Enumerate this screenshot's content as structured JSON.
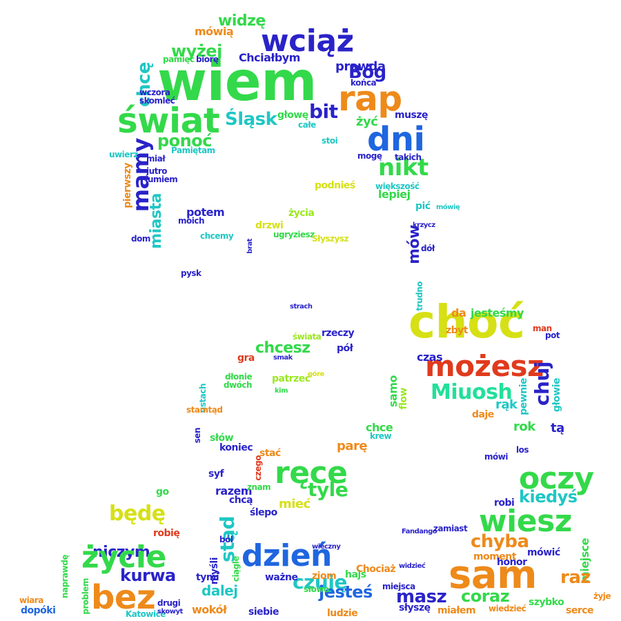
{
  "palette": {
    "green": "#33d94a",
    "lime": "#9be81f",
    "yellow": "#d6e015",
    "blue": "#1f66e0",
    "navy": "#2a23c9",
    "teal": "#1fc7c4",
    "mint": "#22e09a",
    "orange": "#ee8a1a",
    "red": "#e03a1d",
    "purple": "#3b1fd0"
  },
  "words": [
    "wiem",
    "świat",
    "wciąż",
    "rap",
    "dni",
    "chcę",
    "mamy",
    "nikt",
    "Bóg",
    "bit",
    "Śląsk",
    "widzę",
    "wyżej",
    "ponoć",
    "miasta",
    "mówią",
    "Chciałbym",
    "prawda",
    "końca",
    "żyć",
    "muszę",
    "głowę",
    "całe",
    "stoi",
    "mogę",
    "takich",
    "podnieś",
    "większość",
    "lepiej",
    "pić",
    "mów",
    "potem",
    "moich",
    "życia",
    "drzwi",
    "chcemy",
    "dom",
    "ugryziesz",
    "Słyszysz",
    "brat",
    "pysk",
    "choć",
    "możesz",
    "chuj",
    "Miuosh",
    "rąk",
    "daje",
    "pewnie",
    "głowie",
    "rok",
    "tą",
    "da",
    "jesteśmy",
    "zbyt",
    "man",
    "pot",
    "chcesz",
    "rzeczy",
    "pół",
    "świata",
    "gra",
    "patrzeć",
    "kim",
    "czas",
    "samo",
    "flow",
    "ręce",
    "tyle",
    "mieć",
    "parę",
    "chce",
    "krew",
    "koniec",
    "stać",
    "syf",
    "razem",
    "chcą",
    "czego",
    "znam",
    "stąd",
    "ślepo",
    "oczy",
    "kiedyś",
    "wiesz",
    "chyba",
    "robi",
    "mówi",
    "los",
    "moment",
    "mówić",
    "miejsce",
    "będę",
    "niczym",
    "życie",
    "kurwa",
    "bez",
    "go",
    "robię",
    "dzień",
    "czuję",
    "dalej",
    "jesteś",
    "masz",
    "coraz",
    "sam",
    "raz",
    "ziom",
    "wokół",
    "siebie",
    "ludzie",
    "zamiast",
    "Fandango",
    "Chociaż",
    "widzieć",
    "miejsca",
    "Katowice",
    "dopóki",
    "wiara",
    "skowyt",
    "drugi",
    "naprawdę",
    "problem",
    "miałem",
    "słyszę",
    "wiedzieć",
    "szybko",
    "serce",
    "żyje",
    "trudno",
    "dół",
    "krzycz",
    "mówię",
    "góre",
    "strach",
    "smak",
    "dłonie",
    "dwóch",
    "ustach",
    "stamtąd",
    "sen",
    "słów",
    "pierwszy",
    "pamięć",
    "biorę",
    "wczora",
    "skomleć",
    "uwierz",
    "jutro",
    "umiem",
    "Pamiętam",
    "miał",
    "honor",
    "ciągle",
    "ból",
    "myśli",
    "tymi",
    "ważne",
    "hajs",
    "słowo",
    "wieczny"
  ]
}
